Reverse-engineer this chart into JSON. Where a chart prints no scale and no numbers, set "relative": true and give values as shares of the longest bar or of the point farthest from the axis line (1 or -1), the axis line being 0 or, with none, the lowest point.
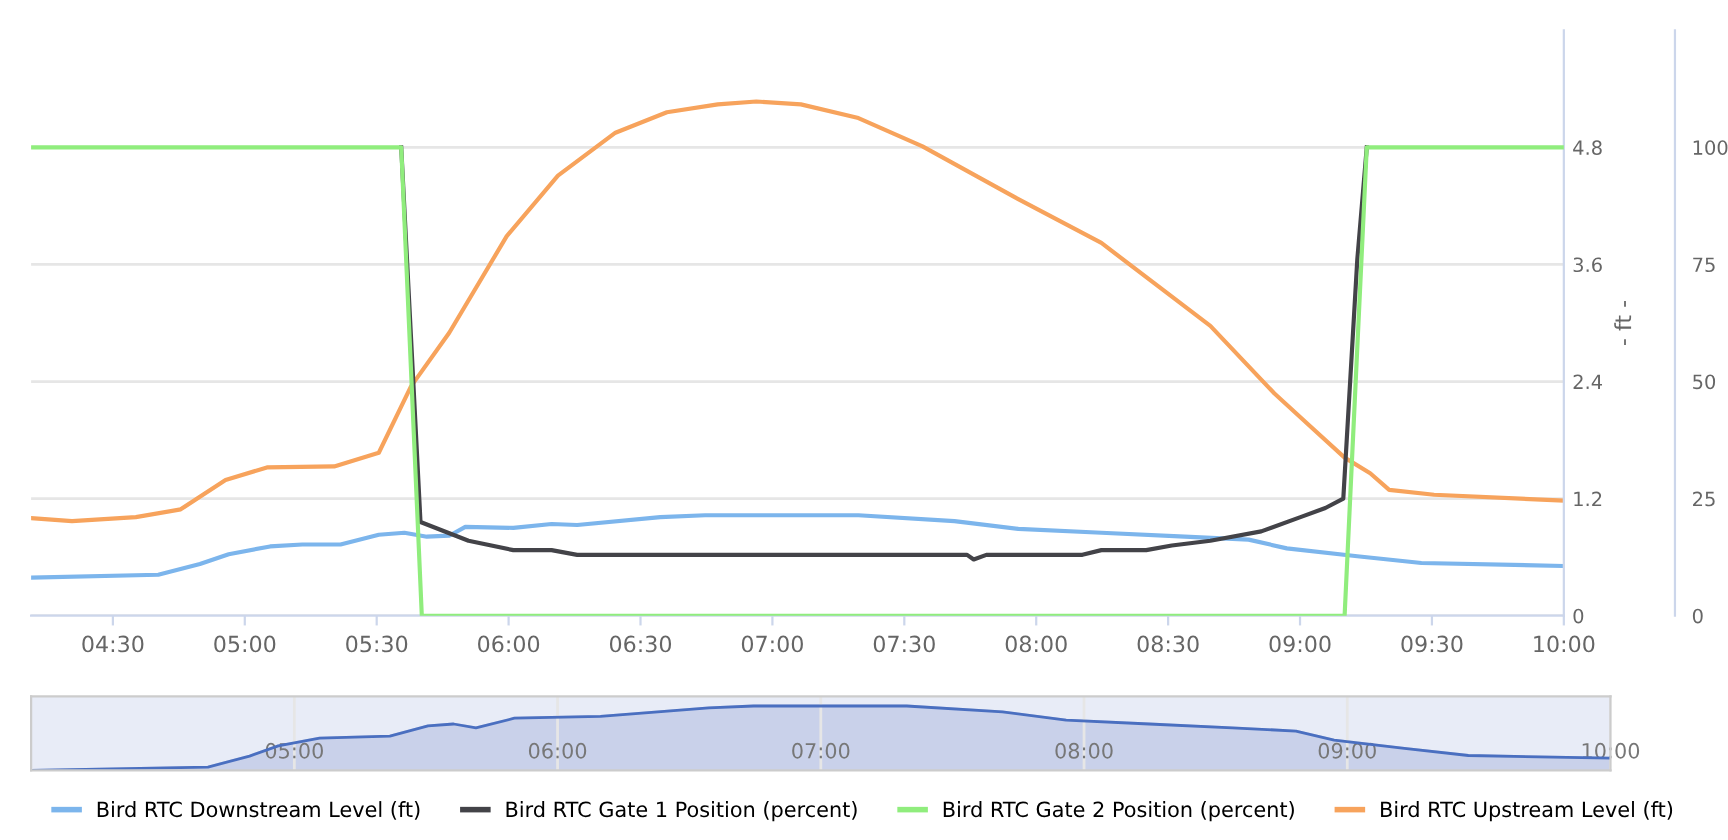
{
  "chart_data": [
    {
      "type": "line",
      "ylabel": "- ft -",
      "xlim": [
        4.19,
        10.0
      ],
      "ylim": [
        0,
        6.0
      ],
      "y2lim": [
        0,
        125
      ],
      "xticks": [
        {
          "value": 4.5,
          "label": "04:30"
        },
        {
          "value": 5.0,
          "label": "05:00"
        },
        {
          "value": 5.5,
          "label": "05:30"
        },
        {
          "value": 6.0,
          "label": "06:00"
        },
        {
          "value": 6.5,
          "label": "06:30"
        },
        {
          "value": 7.0,
          "label": "07:00"
        },
        {
          "value": 7.5,
          "label": "07:30"
        },
        {
          "value": 8.0,
          "label": "08:00"
        },
        {
          "value": 8.5,
          "label": "08:30"
        },
        {
          "value": 9.0,
          "label": "09:00"
        },
        {
          "value": 9.5,
          "label": "09:30"
        },
        {
          "value": 10.0,
          "label": "10:00"
        }
      ],
      "yticks": [
        0,
        1.2,
        2.4,
        3.6,
        4.8
      ],
      "y2ticks": [
        0,
        25,
        50,
        75,
        100
      ],
      "grid": "y",
      "legend": "bottom",
      "marker": "none",
      "line_style": "solid",
      "series": [
        {
          "name": "Bird RTC Downstream Level (ft)",
          "color": "#7cb5ec",
          "x": [
            4.19,
            4.672,
            4.83,
            4.939,
            5.096,
            5.218,
            5.363,
            5.508,
            5.605,
            5.69,
            5.775,
            5.836,
            6.018,
            6.163,
            6.26,
            6.575,
            6.745,
            7.181,
            7.326,
            7.69,
            7.932,
            8.247,
            8.563,
            8.805,
            8.95,
            9.217,
            9.46,
            9.993
          ],
          "values": [
            0.39,
            0.42,
            0.53,
            0.63,
            0.71,
            0.73,
            0.73,
            0.83,
            0.85,
            0.81,
            0.82,
            0.91,
            0.9,
            0.94,
            0.93,
            1.01,
            1.03,
            1.03,
            1.03,
            0.97,
            0.89,
            0.85,
            0.81,
            0.78,
            0.69,
            0.61,
            0.54,
            0.51
          ]
        },
        {
          "name": "Bird RTC Gate 1 Position (percent)",
          "color": "#434348",
          "axis": "y2",
          "x": [
            5.593,
            5.666,
            5.848,
            6.018,
            6.163,
            6.26,
            7.278,
            7.738,
            7.763,
            7.811,
            8.175,
            8.247,
            8.417,
            8.514,
            8.66,
            8.853,
            8.999,
            9.096,
            9.164,
            9.217,
            9.253
          ],
          "values": [
            100,
            20,
            16,
            14,
            14,
            13,
            13,
            13,
            12,
            13,
            13,
            14,
            14,
            15,
            16,
            18,
            21,
            23,
            25,
            76,
            100
          ]
        },
        {
          "name": "Bird RTC Gate 2 Position (percent)",
          "color": "#90ed7d",
          "axis": "y2",
          "x": [
            4.19,
            5.593,
            5.671,
            9.169,
            9.253,
            10.0
          ],
          "values": [
            100,
            100,
            0,
            0,
            100,
            100
          ]
        },
        {
          "name": "Bird RTC Upstream Level (ft)",
          "color": "#f7a35c",
          "x": [
            4.19,
            4.345,
            4.587,
            4.757,
            4.927,
            5.084,
            5.339,
            5.508,
            5.63,
            5.775,
            5.993,
            6.187,
            6.405,
            6.6,
            6.793,
            6.939,
            7.108,
            7.326,
            7.569,
            7.932,
            8.247,
            8.66,
            8.902,
            9.023,
            9.169,
            9.266,
            9.338,
            9.508,
            9.993
          ],
          "values": [
            1.0,
            0.97,
            1.01,
            1.09,
            1.39,
            1.52,
            1.53,
            1.67,
            2.35,
            2.9,
            3.89,
            4.51,
            4.95,
            5.16,
            5.24,
            5.27,
            5.24,
            5.1,
            4.81,
            4.27,
            3.82,
            2.97,
            2.28,
            1.98,
            1.62,
            1.46,
            1.29,
            1.24,
            1.18
          ]
        }
      ]
    },
    {
      "type": "area",
      "relative": true,
      "xlim": [
        4.0,
        10.0
      ],
      "tick_labels": "x",
      "xticks": [
        {
          "value": 5.0,
          "label": "05:00"
        },
        {
          "value": 6.0,
          "label": "06:00"
        },
        {
          "value": 7.0,
          "label": "07:00"
        },
        {
          "value": 8.0,
          "label": "08:00"
        },
        {
          "value": 9.0,
          "label": "09:00"
        },
        {
          "value": 10.0,
          "label": "10:00"
        }
      ],
      "grid": "x",
      "series": [
        {
          "color": "#4a6fc0",
          "x": [
            4.0,
            4.672,
            4.83,
            4.939,
            5.096,
            5.363,
            5.508,
            5.605,
            5.69,
            5.836,
            6.163,
            6.575,
            6.745,
            7.181,
            7.326,
            7.69,
            7.932,
            8.247,
            8.563,
            8.805,
            8.95,
            9.217,
            9.46,
            9.993
          ],
          "values": [
            0,
            0.05,
            0.22,
            0.38,
            0.5,
            0.53,
            0.69,
            0.72,
            0.66,
            0.81,
            0.84,
            0.97,
            1,
            1,
            1,
            0.91,
            0.78,
            0.72,
            0.66,
            0.61,
            0.47,
            0.34,
            0.23,
            0.19
          ]
        }
      ]
    }
  ]
}
